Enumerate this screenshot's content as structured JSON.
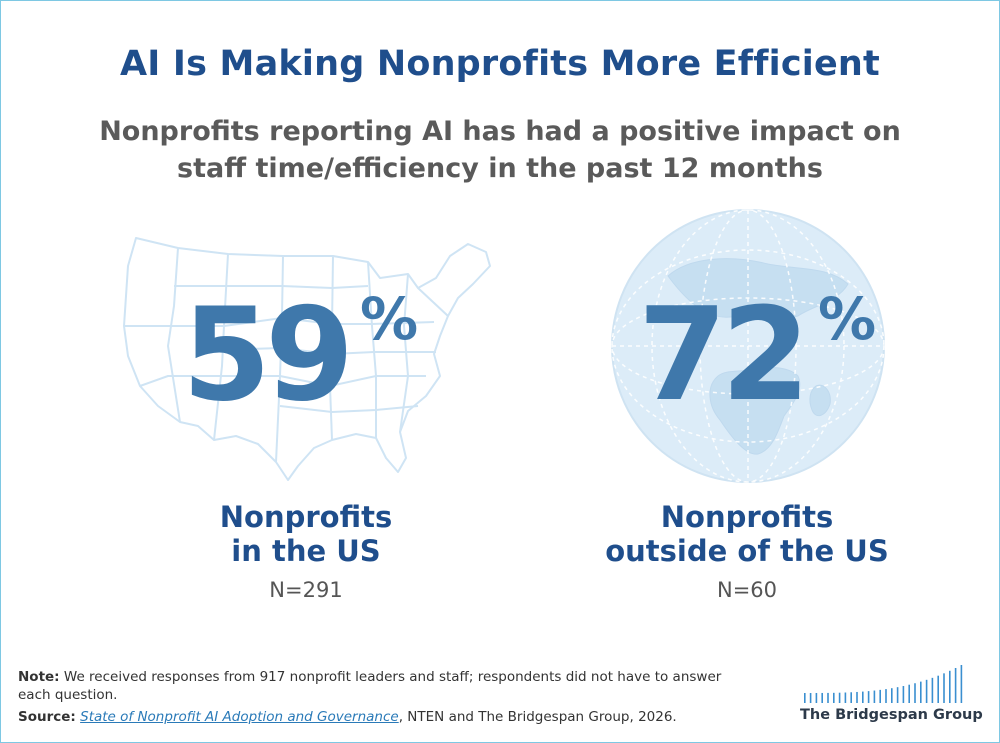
{
  "title": "AI Is Making Nonprofits More Efficient",
  "subtitle_lines": [
    "Nonprofits reporting AI has had a positive impact on",
    "staff time/efficiency in the past 12 months"
  ],
  "chart_data": {
    "type": "table",
    "title": "AI Is Making Nonprofits More Efficient",
    "subtitle": "Nonprofits reporting AI has had a positive impact on staff time/efficiency in the past 12 months",
    "unit": "%",
    "groups": [
      {
        "value": 59,
        "value_text": "59",
        "label_lines": [
          "Nonprofits",
          "in the US"
        ],
        "n": "N=291",
        "icon": "us-map-icon"
      },
      {
        "value": 72,
        "value_text": "72",
        "label_lines": [
          "Nonprofits",
          "outside of the US"
        ],
        "n": "N=60",
        "icon": "globe-icon"
      }
    ]
  },
  "footnote": {
    "note_label": "Note:",
    "note_text": " We received responses from 917 nonprofit leaders and staff; respondents did not have to answer each question.",
    "source_label": "Source:",
    "source_link": "State of Nonprofit AI Adoption and Governance",
    "source_rest": ", NTEN and The Bridgespan Group, 2026."
  },
  "logo": {
    "text": "The Bridgespan Group",
    "icon": "bridgespan-bars-icon"
  },
  "colors": {
    "title": "#1f4e8c",
    "subtitle": "#5a5a5a",
    "number": "#3f78ab",
    "graphic_stroke": "#c9e2f3",
    "globe_fill": "#dcecf8",
    "logo_bars": "#3a8fd0",
    "border": "#7ec8e3"
  }
}
